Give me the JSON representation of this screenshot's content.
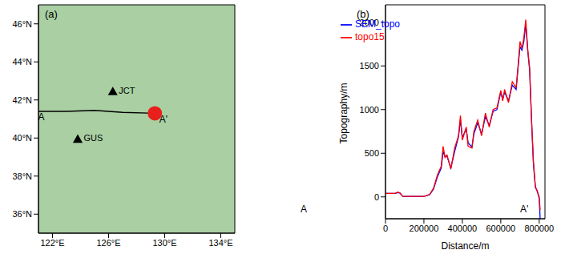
{
  "chart_data": [
    {
      "type": "scatter",
      "title": "(a)",
      "xlim": [
        121,
        135
      ],
      "xticks": [
        {
          "value": 122,
          "label": "122°E"
        },
        {
          "value": 126,
          "label": "126°E"
        },
        {
          "value": 130,
          "label": "130°E"
        },
        {
          "value": 134,
          "label": "134°E"
        }
      ],
      "ylim": [
        35,
        47
      ],
      "yticks": [
        {
          "value": 36,
          "label": "36°N"
        },
        {
          "value": 38,
          "label": "38°N"
        },
        {
          "value": 40,
          "label": "40°N"
        },
        {
          "value": 42,
          "label": "42°N"
        },
        {
          "value": 44,
          "label": "44°N"
        },
        {
          "value": 46,
          "label": "46°N"
        }
      ],
      "color": "#a9cfa3",
      "points": [
        {
          "label": "JCT",
          "x": 126.3,
          "y": 42.4,
          "marker": "triangle",
          "color": "#000000"
        },
        {
          "label": "GUS",
          "x": 123.8,
          "y": 39.9,
          "marker": "triangle",
          "color": "#000000"
        }
      ],
      "event": {
        "x": 129.3,
        "y": 41.3,
        "marker": "circle",
        "color": "#e8201c"
      },
      "profile": {
        "x": [
          121,
          123,
          125,
          127,
          129.3
        ],
        "values": [
          41.4,
          41.4,
          41.45,
          41.35,
          41.3
        ],
        "color": "#000000",
        "labels": [
          "A",
          "A'"
        ]
      }
    },
    {
      "type": "line",
      "title": "(b)",
      "x_label": "Distance/m",
      "y_label": "Topography/m",
      "xlim": [
        0,
        830000
      ],
      "xticks": [
        0,
        200000,
        400000,
        600000,
        800000
      ],
      "ylim": [
        -250,
        2200
      ],
      "yticks": [
        0,
        500,
        1000,
        1500,
        2000
      ],
      "legend": "upper left",
      "annotations": [
        "A",
        "A'"
      ],
      "x": [
        0,
        50000,
        65000,
        75000,
        90000,
        150000,
        200000,
        230000,
        250000,
        270000,
        290000,
        300000,
        310000,
        320000,
        340000,
        360000,
        380000,
        390000,
        400000,
        420000,
        430000,
        450000,
        460000,
        480000,
        500000,
        520000,
        540000,
        560000,
        580000,
        600000,
        610000,
        620000,
        640000,
        660000,
        680000,
        690000,
        700000,
        710000,
        720000,
        730000,
        740000,
        750000,
        760000,
        770000,
        780000,
        790000,
        800000,
        805000
      ],
      "series": [
        {
          "name": "SEM_topo",
          "color": "#0000ff",
          "values": [
            40,
            40,
            50,
            45,
            5,
            5,
            5,
            25,
            90,
            230,
            330,
            520,
            460,
            470,
            330,
            520,
            690,
            880,
            680,
            780,
            620,
            570,
            720,
            850,
            720,
            920,
            820,
            980,
            1000,
            1200,
            1120,
            1200,
            1100,
            1280,
            1230,
            1480,
            1720,
            1680,
            1780,
            1980,
            1680,
            1460,
            880,
            380,
            110,
            70,
            -20,
            -250
          ]
        },
        {
          "name": "topo15",
          "color": "#ff0000",
          "values": [
            40,
            40,
            55,
            45,
            5,
            5,
            5,
            30,
            100,
            250,
            350,
            580,
            450,
            480,
            320,
            560,
            700,
            930,
            650,
            800,
            580,
            560,
            750,
            880,
            700,
            960,
            800,
            1000,
            1020,
            1220,
            1100,
            1230,
            1080,
            1320,
            1250,
            1500,
            1780,
            1700,
            1820,
            2030,
            1700,
            1480,
            900,
            400,
            120,
            60,
            0,
            -150
          ]
        }
      ]
    }
  ]
}
